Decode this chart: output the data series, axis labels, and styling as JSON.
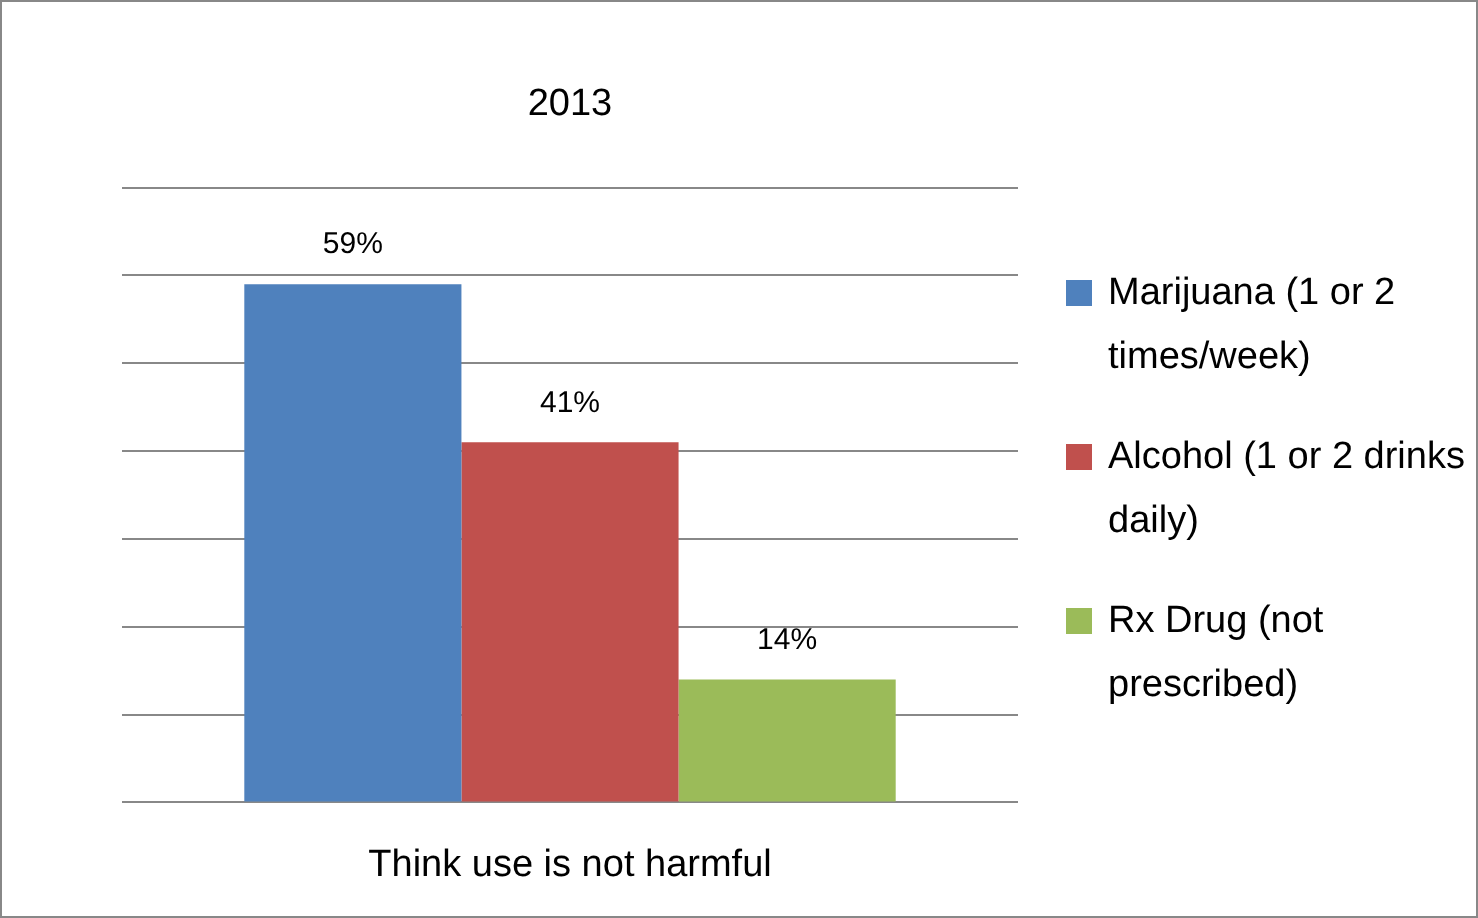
{
  "chart_data": {
    "type": "bar",
    "title": "2013",
    "xlabel": "Think use is not harmful",
    "categories": [
      null
    ],
    "series": [
      {
        "name": "Marijuana (1 or 2  times/week)",
        "color": "#4f81bd",
        "values": [
          59
        ],
        "value_labels": [
          "59%"
        ]
      },
      {
        "name": "Alcohol (1 or 2 drinks daily)",
        "color": "#c0504d",
        "values": [
          41
        ],
        "value_labels": [
          "41%"
        ]
      },
      {
        "name": "Rx Drug (not prescribed)",
        "color": "#9bbb59",
        "values": [
          14
        ],
        "value_labels": [
          "14%"
        ]
      }
    ],
    "grid": "y",
    "legend": "right",
    "tick_labels": false
  }
}
